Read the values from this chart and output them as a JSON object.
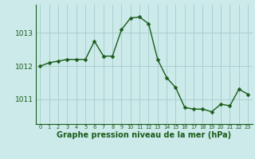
{
  "x": [
    0,
    1,
    2,
    3,
    4,
    5,
    6,
    7,
    8,
    9,
    10,
    11,
    12,
    13,
    14,
    15,
    16,
    17,
    18,
    19,
    20,
    21,
    22,
    23
  ],
  "y": [
    1012.0,
    1012.1,
    1012.15,
    1012.2,
    1012.2,
    1012.2,
    1012.75,
    1012.3,
    1012.3,
    1013.1,
    1013.45,
    1013.48,
    1013.28,
    1012.2,
    1011.65,
    1011.35,
    1010.75,
    1010.7,
    1010.7,
    1010.62,
    1010.85,
    1010.8,
    1011.3,
    1011.15
  ],
  "line_color": "#1a5c1a",
  "marker": "D",
  "marker_size": 2.5,
  "bg_color": "#cceaea",
  "grid_color": "#aacfcf",
  "axis_color": "#1a5c1a",
  "tick_color": "#1a5c1a",
  "xlabel": "Graphe pression niveau de la mer (hPa)",
  "xlabel_fontsize": 7,
  "yticks": [
    1011,
    1012,
    1013
  ],
  "ylim": [
    1010.25,
    1013.85
  ],
  "xlim": [
    -0.5,
    23.5
  ],
  "xtick_labels": [
    "0",
    "1",
    "2",
    "3",
    "4",
    "5",
    "6",
    "7",
    "8",
    "9",
    "10",
    "11",
    "12",
    "13",
    "14",
    "15",
    "16",
    "17",
    "18",
    "19",
    "20",
    "21",
    "22",
    "23"
  ]
}
